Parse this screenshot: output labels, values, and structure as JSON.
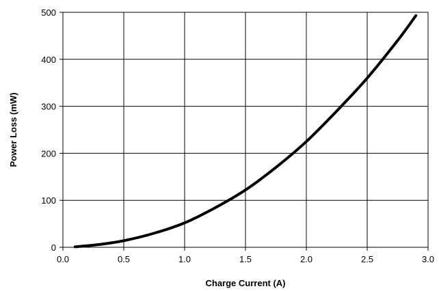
{
  "chart_data": {
    "type": "line",
    "title": "",
    "xlabel": "Charge Current (A)",
    "ylabel": "Power Loss (mW)",
    "xlim": [
      0.0,
      3.0
    ],
    "ylim": [
      0,
      500
    ],
    "x_ticks": [
      "0.0",
      "0.5",
      "1.0",
      "1.5",
      "2.0",
      "2.5",
      "3.0"
    ],
    "y_ticks": [
      "0",
      "100",
      "200",
      "300",
      "400",
      "500"
    ],
    "grid": true,
    "legend": "none",
    "line_color": "#000000",
    "series": [
      {
        "x": [
          0.1,
          0.3,
          0.5,
          0.75,
          1.0,
          1.25,
          1.5,
          1.75,
          2.0,
          2.25,
          2.5,
          2.75,
          2.9
        ],
        "values": [
          1,
          6,
          14,
          30,
          52,
          84,
          122,
          170,
          225,
          290,
          360,
          440,
          493
        ]
      }
    ]
  }
}
